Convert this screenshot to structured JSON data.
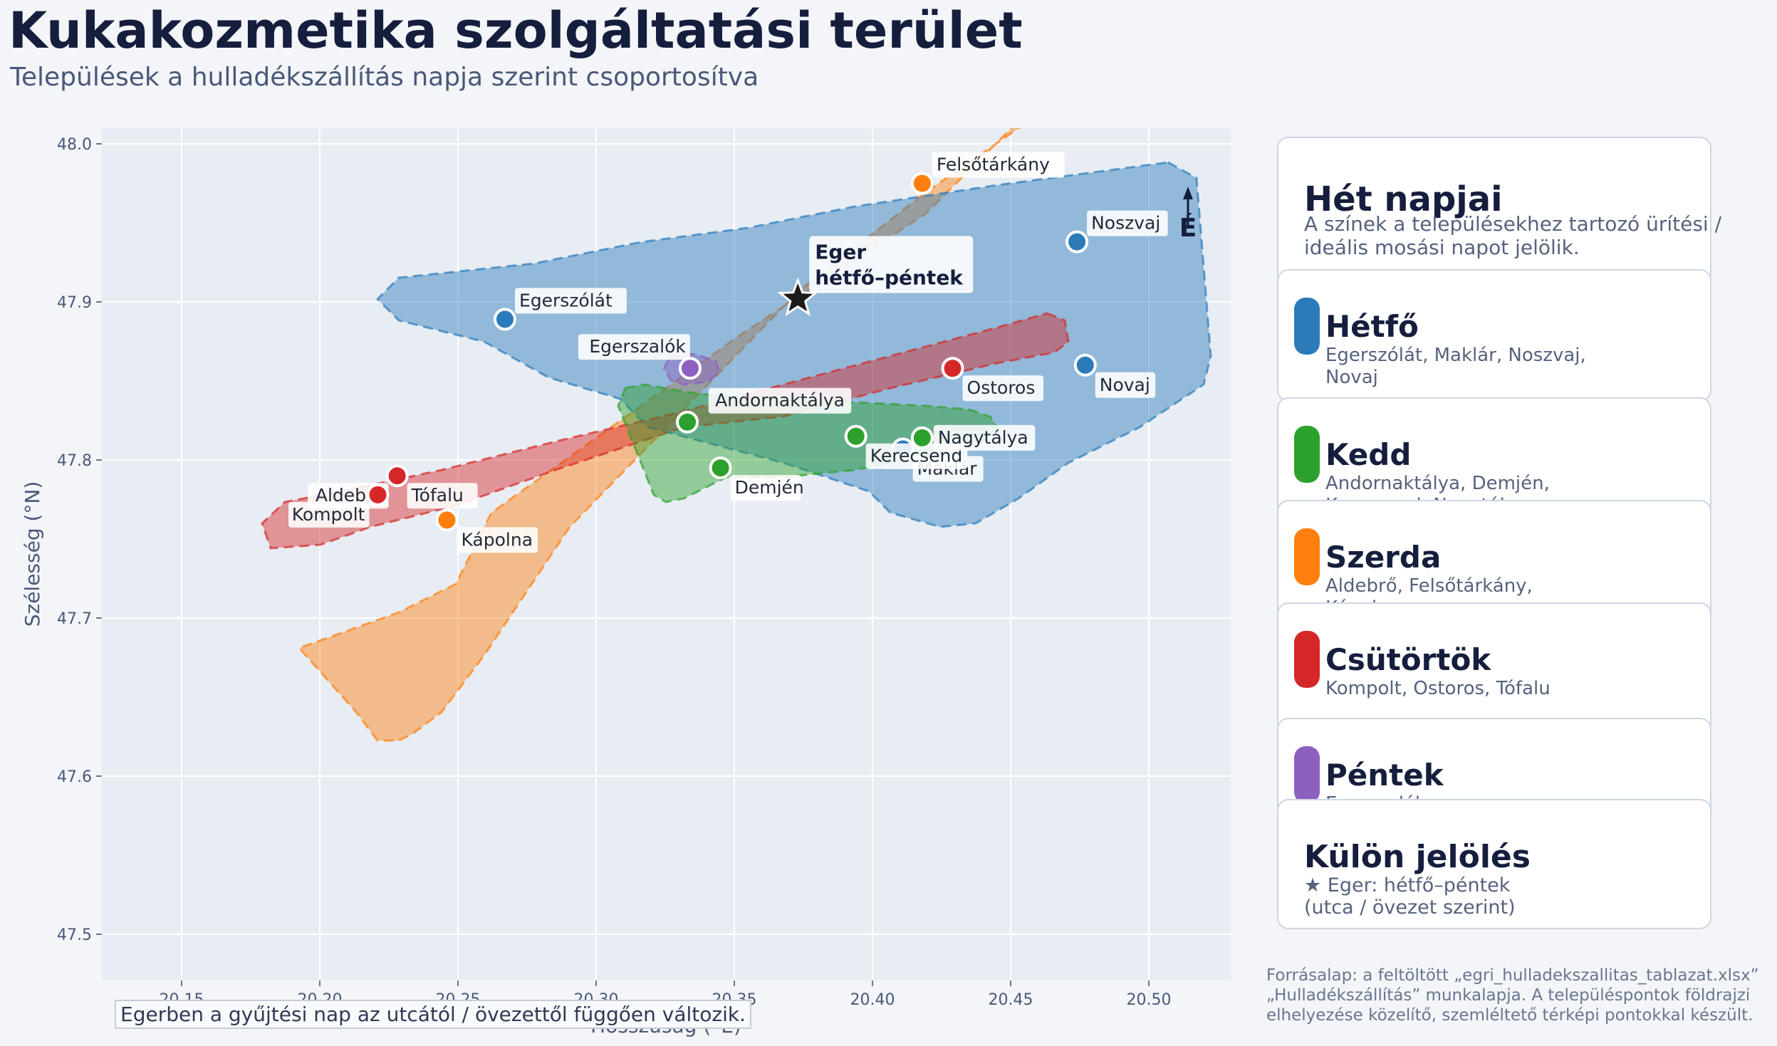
{
  "title": "Kukakozmetika szolgáltatási terület",
  "subtitle": "Települések a hulladékszállítás napja szerint csoportosítva",
  "map": {
    "x_label": "Hosszúság (°E)",
    "y_label": "Szélesség (°N)",
    "x_ticks": [
      "20.15",
      "20.20",
      "20.25",
      "20.30",
      "20.35",
      "20.40",
      "20.45",
      "20.50"
    ],
    "y_ticks": [
      "48.0",
      "47.9",
      "47.8",
      "47.7",
      "47.6",
      "47.5"
    ],
    "x_range": [
      20.12,
      20.53
    ],
    "y_range": [
      47.47,
      48.01
    ],
    "grid": true,
    "north_arrow_label": "É",
    "background_color": "#e8edf3"
  },
  "day_colors": {
    "hetfo": "#2b7bba",
    "kedd": "#2ca02c",
    "szerda": "#ff7f0e",
    "csutortok": "#d62728",
    "pentek": "#8d5fc0",
    "special": "#1c1c1c"
  },
  "towns": [
    {
      "name": "Egerszólát",
      "lon": 20.267,
      "lat": 47.889,
      "day": "hetfo",
      "label_pos": "upper-right"
    },
    {
      "name": "Noszvaj",
      "lon": 20.474,
      "lat": 47.938,
      "day": "hetfo",
      "label_pos": "upper-right"
    },
    {
      "name": "Novaj",
      "lon": 20.477,
      "lat": 47.86,
      "day": "hetfo",
      "label_pos": "lower-right"
    },
    {
      "name": "Maklár",
      "lon": 20.411,
      "lat": 47.807,
      "day": "hetfo",
      "label_pos": "lower-right"
    },
    {
      "name": "Andornaktálya",
      "lon": 20.333,
      "lat": 47.824,
      "day": "kedd",
      "label_pos": "upper-right-far"
    },
    {
      "name": "Demjén",
      "lon": 20.345,
      "lat": 47.795,
      "day": "kedd",
      "label_pos": "lower-right"
    },
    {
      "name": "Kerecsend",
      "lon": 20.394,
      "lat": 47.815,
      "day": "kedd",
      "label_pos": "lower-right"
    },
    {
      "name": "Nagytálya",
      "lon": 20.418,
      "lat": 47.814,
      "day": "kedd",
      "label_pos": "right"
    },
    {
      "name": "Felsőtárkány",
      "lon": 20.418,
      "lat": 47.975,
      "day": "szerda",
      "label_pos": "upper-right"
    },
    {
      "name": "Aldebrő",
      "lon": 20.228,
      "lat": 47.79,
      "day": "szerda",
      "label_pos": "lower-left"
    },
    {
      "name": "Kápolna",
      "lon": 20.246,
      "lat": 47.762,
      "day": "szerda",
      "label_pos": "lower-right"
    },
    {
      "name": "Kompolt",
      "lon": 20.221,
      "lat": 47.778,
      "day": "csutortok",
      "label_pos": "lower-left"
    },
    {
      "name": "Ostoros",
      "lon": 20.429,
      "lat": 47.858,
      "day": "csutortok",
      "label_pos": "lower-right"
    },
    {
      "name": "Tófalu",
      "lon": 20.228,
      "lat": 47.79,
      "day": "csutortok",
      "label_pos": "lower-right"
    },
    {
      "name": "Egerszalók",
      "lon": 20.334,
      "lat": 47.858,
      "day": "pentek",
      "label_pos": "upper-left"
    }
  ],
  "eger": {
    "name": "Eger",
    "label": "hétfő–péntek",
    "lon": 20.373,
    "lat": 47.902
  },
  "legend": {
    "title": "Hét napjai",
    "description": "A színek a településekhez tartozó ürítési / ideális mosási napot jelölik.",
    "days": [
      {
        "key": "hetfo",
        "day": "Hétfő",
        "towns": "Egerszólát, Maklár, Noszvaj, Novaj"
      },
      {
        "key": "kedd",
        "day": "Kedd",
        "towns": "Andornaktálya, Demjén, Kerecsend, Nagytálya"
      },
      {
        "key": "szerda",
        "day": "Szerda",
        "towns": "Aldebrő, Felsőtárkány, Kápolna"
      },
      {
        "key": "csutortok",
        "day": "Csütörtök",
        "towns": "Kompolt, Ostoros, Tófalu"
      },
      {
        "key": "pentek",
        "day": "Péntek",
        "towns": "Egerszalók"
      }
    ],
    "special_title": "Külön jelölés",
    "special_text": "★ Eger: hétfő–péntek (utca / övezet szerint)"
  },
  "note": "Egerben a gyűjtési nap az utcától / övezettől függően változik.",
  "source": "Forrásalap: a feltöltött „egri_hulladekszallitas_tablazat.xlsx” „Hulladékszállítás” munkalapja. A településpontok földrajzi elhelyezése közelítő, szemléltető térképi pontokkal készült."
}
